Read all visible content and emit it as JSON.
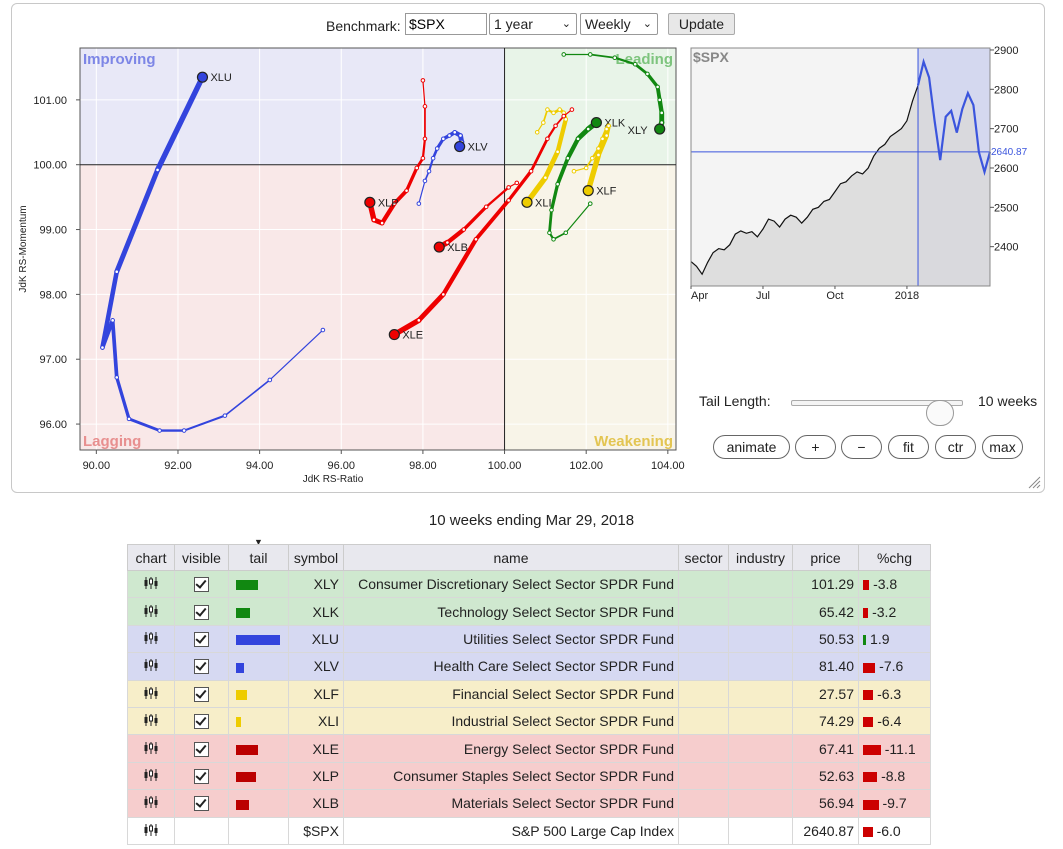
{
  "controls": {
    "benchmark_label": "Benchmark:",
    "benchmark_value": "$SPX",
    "period_value": "1 year",
    "frequency_value": "Weekly",
    "update_label": "Update",
    "tail_length_label": "Tail Length:",
    "tail_length_value": "10 weeks",
    "buttons": [
      "animate",
      "+",
      "−",
      "fit",
      "ctr",
      "max"
    ]
  },
  "caption": "10 weeks ending Mar 29, 2018",
  "chart_data": [
    {
      "type": "scatter",
      "title": "",
      "xlabel": "JdK RS-Ratio",
      "ylabel": "JdK RS-Momentum",
      "xlim": [
        89.6,
        104.2
      ],
      "ylim": [
        95.6,
        101.8
      ],
      "xticks": [
        "90.00",
        "92.00",
        "94.00",
        "96.00",
        "98.00",
        "100.00",
        "102.00",
        "104.00"
      ],
      "xtick_values": [
        90,
        92,
        94,
        96,
        98,
        100,
        102,
        104
      ],
      "yticks": [
        "96.00",
        "97.00",
        "98.00",
        "99.00",
        "100.00",
        "101.00"
      ],
      "ytick_values": [
        96,
        97,
        98,
        99,
        100,
        101
      ],
      "quadrants": {
        "top_left": "Improving",
        "top_right": "Leading",
        "bottom_left": "Lagging",
        "bottom_right": "Weakening"
      },
      "quadrant_colors": {
        "improving": "#e8e8f7",
        "leading": "#e8f4e8",
        "lagging": "#f9e8e8",
        "weakening": "#f8f4e8"
      },
      "series": [
        {
          "name": "XLU",
          "color": "#3344dd",
          "x": [
            95.55,
            94.25,
            93.15,
            92.15,
            91.55,
            90.8,
            90.5,
            90.4,
            90.15,
            90.5,
            91.5,
            92.6
          ],
          "y": [
            97.45,
            96.68,
            96.13,
            95.9,
            95.9,
            96.08,
            96.72,
            97.6,
            97.18,
            98.35,
            99.92,
            101.35
          ]
        },
        {
          "name": "XLV",
          "color": "#3344dd",
          "x": [
            97.9,
            98.05,
            98.15,
            98.25,
            98.35,
            98.5,
            98.65,
            98.78,
            98.92,
            98.95,
            98.9
          ],
          "y": [
            99.4,
            99.75,
            99.9,
            100.1,
            100.25,
            100.4,
            100.45,
            100.5,
            100.45,
            100.35,
            100.28
          ]
        },
        {
          "name": "XLK",
          "color": "#118811",
          "x": [
            102.1,
            101.5,
            101.2,
            101.1,
            101.15,
            101.3,
            101.55,
            101.8,
            102.05,
            102.25
          ],
          "y": [
            99.4,
            98.95,
            98.85,
            98.95,
            99.3,
            99.7,
            100.1,
            100.4,
            100.55,
            100.65
          ]
        },
        {
          "name": "XLY",
          "color": "#118811",
          "x": [
            101.45,
            102.1,
            102.7,
            103.2,
            103.5,
            103.75,
            103.8,
            103.85,
            103.85,
            103.8
          ],
          "y": [
            101.7,
            101.7,
            101.65,
            101.55,
            101.4,
            101.2,
            101.0,
            100.8,
            100.65,
            100.55
          ]
        },
        {
          "name": "XLF",
          "color": "#eecc00",
          "x": [
            101.7,
            102.0,
            102.15,
            102.3,
            102.4,
            102.5,
            102.55,
            102.5,
            102.3,
            102.05
          ],
          "y": [
            99.9,
            99.95,
            100.1,
            100.25,
            100.4,
            100.55,
            100.6,
            100.45,
            100.15,
            99.6
          ]
        },
        {
          "name": "XLI",
          "color": "#eecc00",
          "x": [
            100.8,
            100.95,
            101.05,
            101.2,
            101.35,
            101.45,
            101.5,
            101.3,
            101.0,
            100.55
          ],
          "y": [
            100.5,
            100.65,
            100.85,
            100.8,
            100.85,
            100.8,
            100.7,
            100.2,
            99.8,
            99.42
          ]
        },
        {
          "name": "XLE",
          "color": "#ee0000",
          "x": [
            101.65,
            101.45,
            101.25,
            101.05,
            100.65,
            100.1,
            99.3,
            98.5,
            97.9,
            97.3
          ],
          "y": [
            100.85,
            100.75,
            100.6,
            100.4,
            99.9,
            99.45,
            98.85,
            98.0,
            97.6,
            97.38
          ]
        },
        {
          "name": "XLP",
          "color": "#ee0000",
          "x": [
            98.0,
            98.05,
            98.05,
            98.0,
            97.85,
            97.6,
            97.3,
            97.0,
            96.8,
            96.7
          ],
          "y": [
            101.3,
            100.9,
            100.4,
            100.1,
            99.95,
            99.6,
            99.4,
            99.1,
            99.15,
            99.42
          ]
        },
        {
          "name": "XLB",
          "color": "#ee0000",
          "x": [
            100.3,
            100.1,
            99.55,
            99.0,
            98.6,
            98.4
          ],
          "y": [
            99.72,
            99.65,
            99.35,
            99.0,
            98.8,
            98.73
          ]
        }
      ]
    },
    {
      "type": "area",
      "title": "$SPX",
      "xticks": [
        "Apr",
        "Jul",
        "Oct",
        "2018"
      ],
      "yticks": [
        "2400",
        "2500",
        "2600",
        "2700",
        "2800",
        "2900"
      ],
      "ytick_values": [
        2400,
        2500,
        2600,
        2700,
        2800,
        2900
      ],
      "ylim": [
        2300,
        2905
      ],
      "current_value": "2640.87",
      "week_index_xticks": [
        0,
        13,
        26,
        39
      ],
      "tail_start_index": 41,
      "values": [
        2362,
        2350,
        2330,
        2360,
        2385,
        2395,
        2392,
        2405,
        2432,
        2440,
        2434,
        2438,
        2425,
        2445,
        2470,
        2465,
        2450,
        2470,
        2480,
        2475,
        2460,
        2475,
        2495,
        2500,
        2515,
        2520,
        2540,
        2560,
        2565,
        2580,
        2590,
        2585,
        2600,
        2630,
        2650,
        2660,
        2680,
        2690,
        2700,
        2720,
        2770,
        2810,
        2870,
        2830,
        2720,
        2620,
        2730,
        2745,
        2690,
        2750,
        2790,
        2760,
        2640,
        2590,
        2640.87
      ]
    }
  ],
  "table": {
    "headers": [
      "chart",
      "visible",
      "tail",
      "symbol",
      "name",
      "sector",
      "industry",
      "price",
      "%chg"
    ],
    "rows": [
      {
        "group": "green",
        "symbol": "XLY",
        "name": "Consumer Discretionary Select Sector SPDR Fund",
        "price": "101.29",
        "chg": "-3.8",
        "chg_value": -3.8,
        "tail_color": "#118811",
        "tail_length": 22,
        "visible": true
      },
      {
        "group": "green",
        "symbol": "XLK",
        "name": "Technology Select Sector SPDR Fund",
        "price": "65.42",
        "chg": "-3.2",
        "chg_value": -3.2,
        "tail_color": "#118811",
        "tail_length": 14,
        "visible": true
      },
      {
        "group": "blue",
        "symbol": "XLU",
        "name": "Utilities Select Sector SPDR Fund",
        "price": "50.53",
        "chg": "1.9",
        "chg_value": 1.9,
        "tail_color": "#3344dd",
        "tail_length": 44,
        "visible": true
      },
      {
        "group": "blue",
        "symbol": "XLV",
        "name": "Health Care Select Sector SPDR Fund",
        "price": "81.40",
        "chg": "-7.6",
        "chg_value": -7.6,
        "tail_color": "#3344dd",
        "tail_length": 8,
        "visible": true
      },
      {
        "group": "yellow",
        "symbol": "XLF",
        "name": "Financial Select Sector SPDR Fund",
        "price": "27.57",
        "chg": "-6.3",
        "chg_value": -6.3,
        "tail_color": "#eecc00",
        "tail_length": 11,
        "visible": true
      },
      {
        "group": "yellow",
        "symbol": "XLI",
        "name": "Industrial Select Sector SPDR Fund",
        "price": "74.29",
        "chg": "-6.4",
        "chg_value": -6.4,
        "tail_color": "#eecc00",
        "tail_length": 5,
        "visible": true
      },
      {
        "group": "red",
        "symbol": "XLE",
        "name": "Energy Select Sector SPDR Fund",
        "price": "67.41",
        "chg": "-11.1",
        "chg_value": -11.1,
        "tail_color": "#bb0000",
        "tail_length": 22,
        "visible": true
      },
      {
        "group": "red",
        "symbol": "XLP",
        "name": "Consumer Staples Select Sector SPDR Fund",
        "price": "52.63",
        "chg": "-8.8",
        "chg_value": -8.8,
        "tail_color": "#bb0000",
        "tail_length": 20,
        "visible": true
      },
      {
        "group": "red",
        "symbol": "XLB",
        "name": "Materials Select Sector SPDR Fund",
        "price": "56.94",
        "chg": "-9.7",
        "chg_value": -9.7,
        "tail_color": "#bb0000",
        "tail_length": 13,
        "visible": true
      },
      {
        "group": "white",
        "symbol": "$SPX",
        "name": "S&P 500 Large Cap Index",
        "price": "2640.87",
        "chg": "-6.0",
        "chg_value": -6.0,
        "tail_color": "",
        "tail_length": 0,
        "visible": false
      }
    ]
  }
}
